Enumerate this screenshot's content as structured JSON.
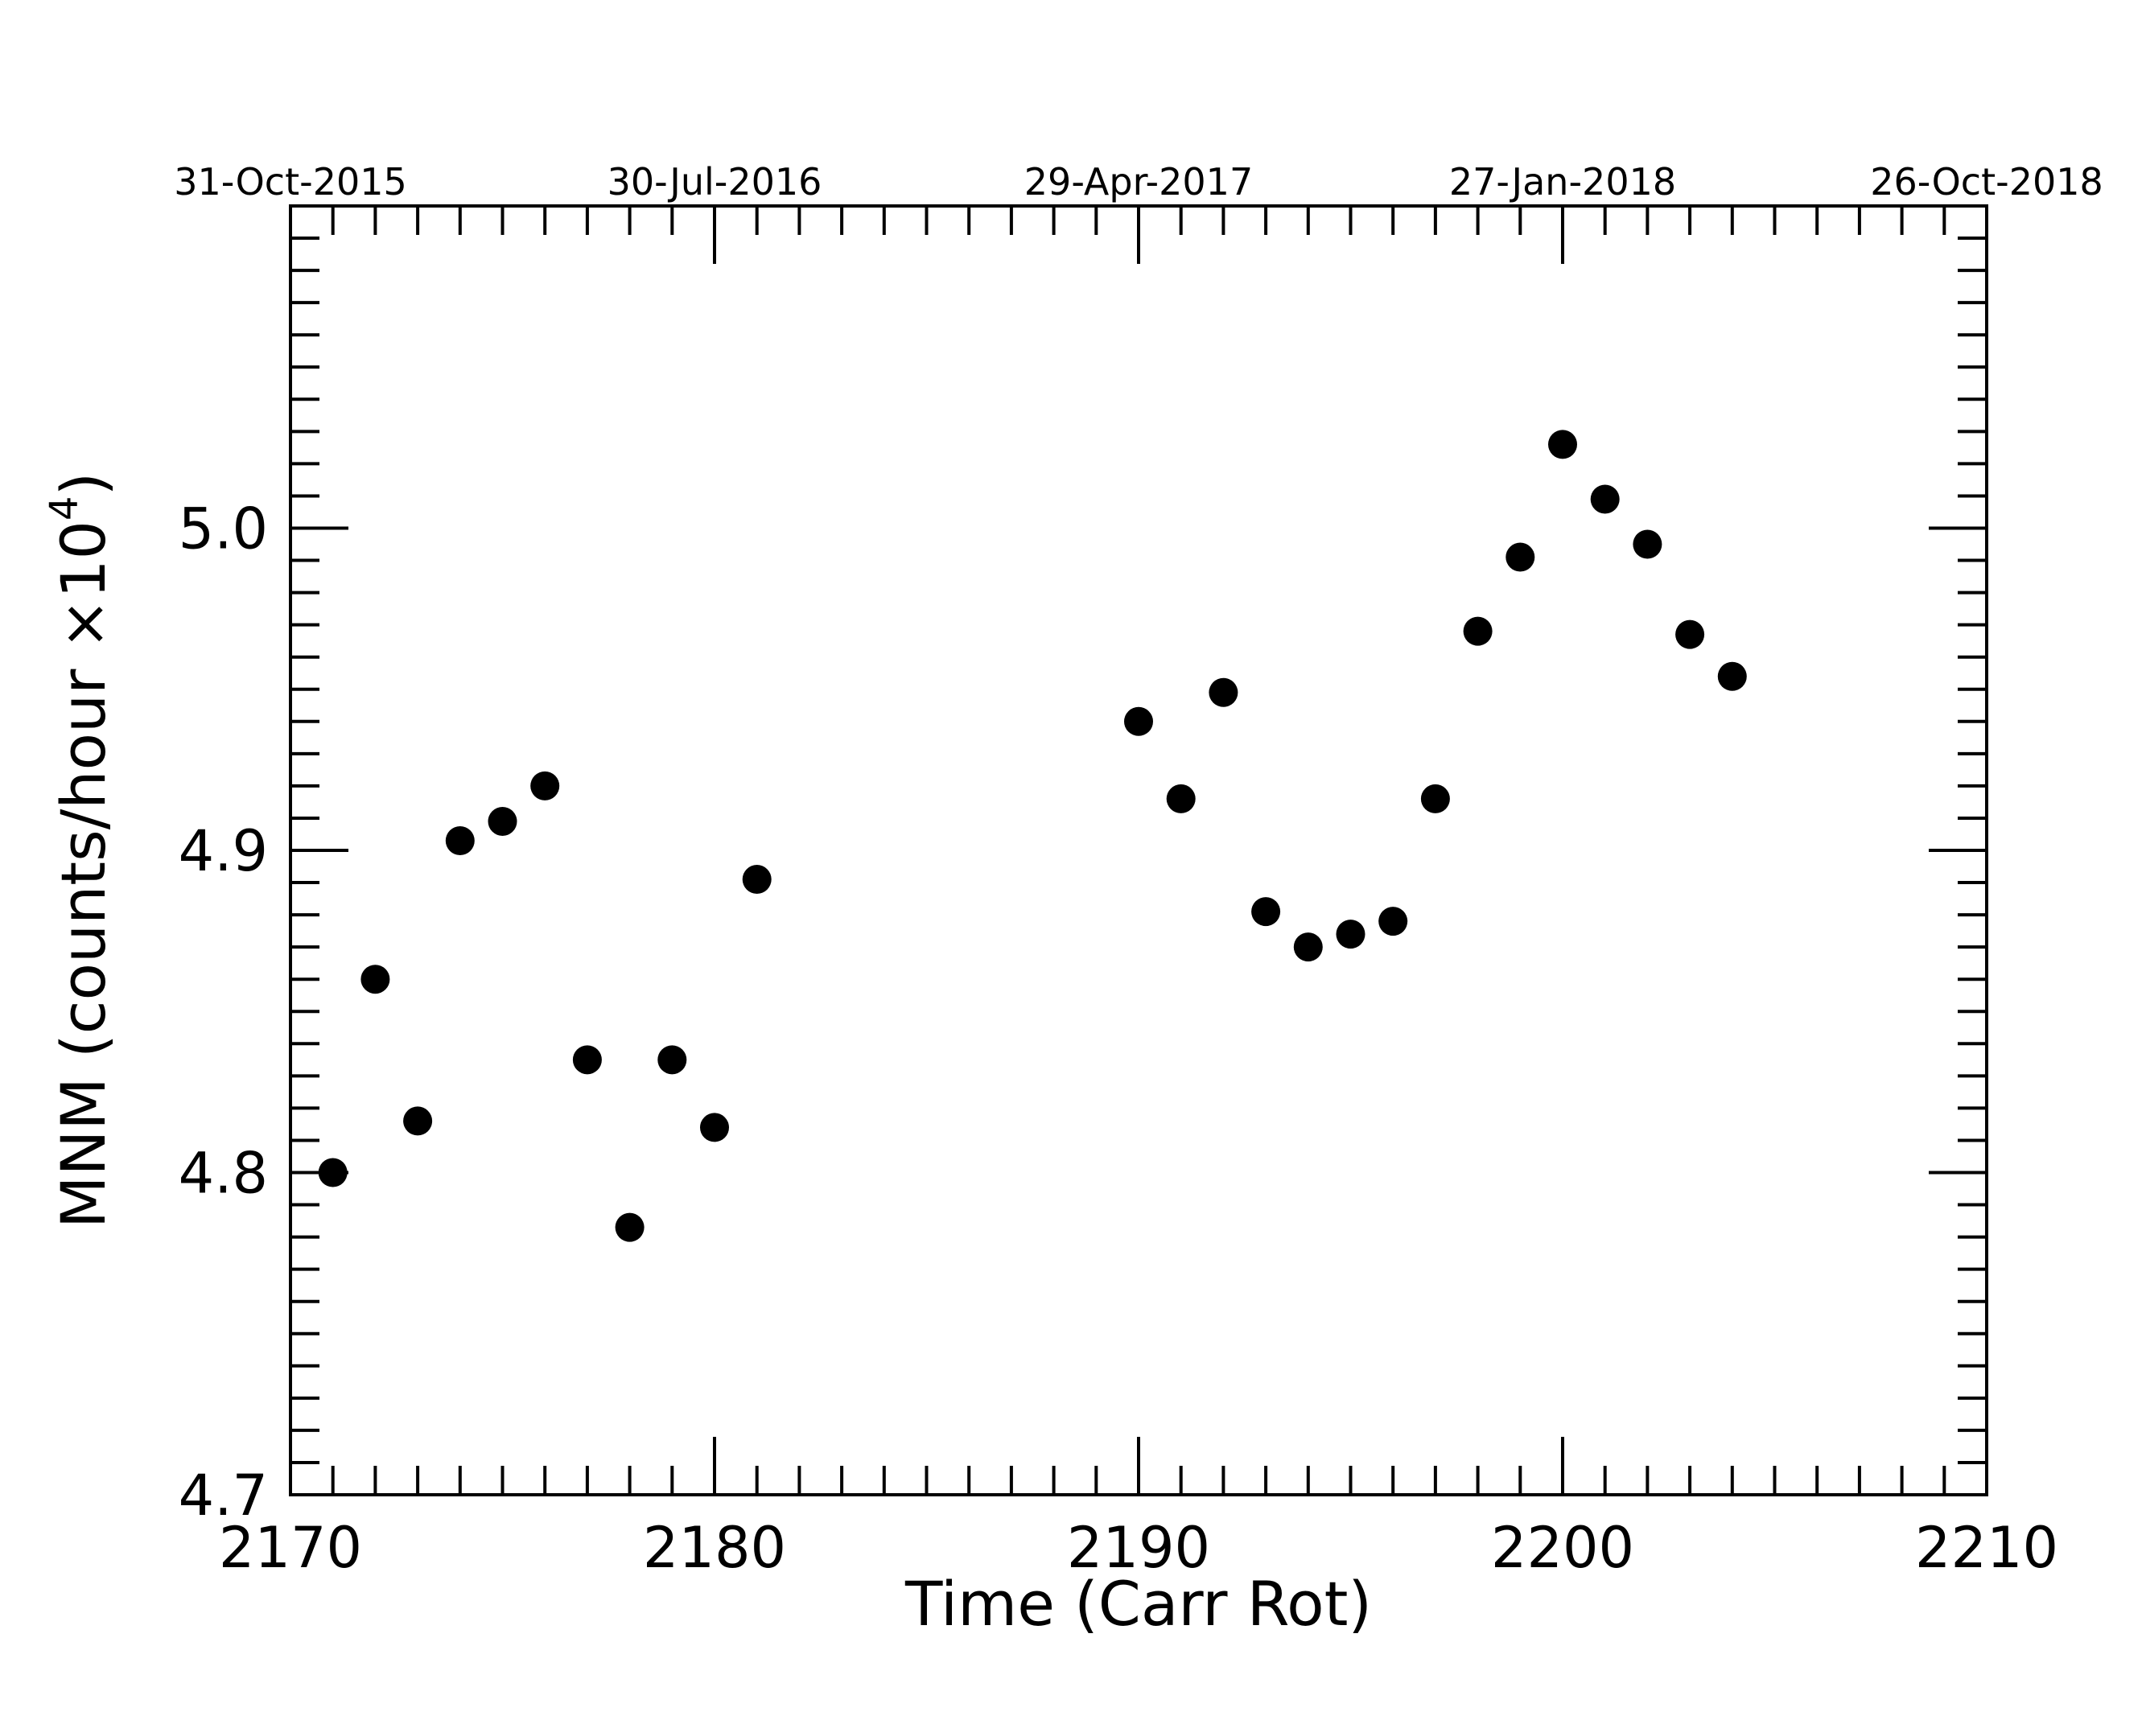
{
  "chart_data": {
    "type": "scatter",
    "x_label": "Time (Carr Rot)",
    "y_label": "MNM (counts/hour ×10",
    "y_label_sup": "4",
    "y_label_end": ")",
    "x": [
      2171,
      2172,
      2173,
      2174,
      2175,
      2176,
      2177,
      2178,
      2179,
      2180,
      2181,
      2190,
      2191,
      2192,
      2193,
      2194,
      2195,
      2196,
      2197,
      2198,
      2199,
      2200,
      2201,
      2202,
      2203,
      2204
    ],
    "values": [
      4.8,
      4.86,
      4.816,
      4.903,
      4.909,
      4.92,
      4.835,
      4.783,
      4.835,
      4.814,
      4.891,
      4.94,
      4.916,
      4.949,
      4.881,
      4.87,
      4.874,
      4.878,
      4.916,
      4.968,
      4.991,
      5.026,
      5.009,
      4.995,
      4.967,
      4.954
    ],
    "color": "#000000",
    "xlim": [
      2170,
      2210
    ],
    "xticks": [
      2170,
      2180,
      2190,
      2200,
      2210
    ],
    "x_minor_step": 1,
    "x2ticks": [
      {
        "value": 2170,
        "label": "31-Oct-2015"
      },
      {
        "value": 2180,
        "label": "30-Jul-2016"
      },
      {
        "value": 2190,
        "label": "29-Apr-2017"
      },
      {
        "value": 2200,
        "label": "27-Jan-2018"
      },
      {
        "value": 2210,
        "label": "26-Oct-2018"
      }
    ],
    "ylim": [
      4.7,
      5.1
    ],
    "yticks": [
      4.7,
      4.8,
      4.9,
      {
        "value": 5.0,
        "label": "5.0"
      }
    ],
    "y_minor_step": 0.01,
    "grid": false
  }
}
